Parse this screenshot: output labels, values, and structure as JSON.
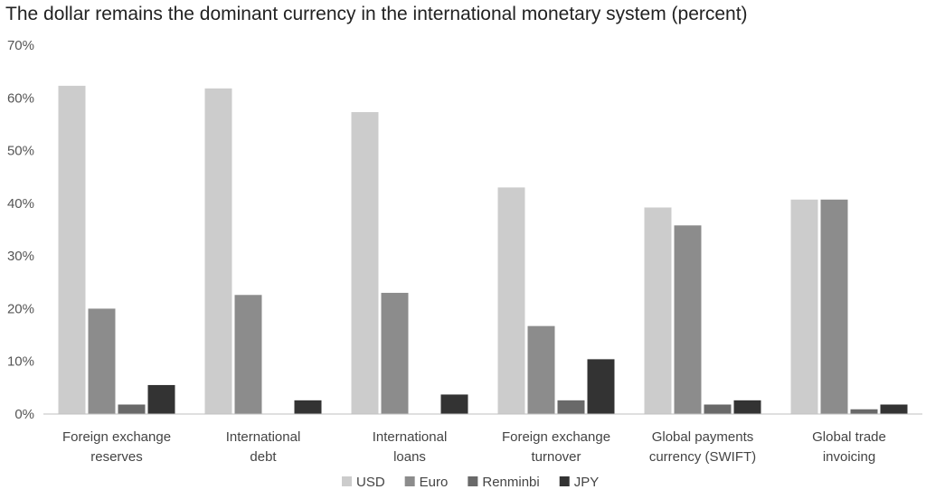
{
  "chart_data": {
    "type": "bar",
    "title": "The dollar remains the dominant currency in the international monetary system (percent)",
    "categories": [
      [
        "Foreign exchange",
        "reserves"
      ],
      [
        "International",
        "debt"
      ],
      [
        "International",
        "loans"
      ],
      [
        "Foreign exchange",
        "turnover"
      ],
      [
        "Global payments",
        "currency (SWIFT)"
      ],
      [
        "Global trade",
        "invoicing"
      ]
    ],
    "series": [
      {
        "name": "USD",
        "color": "#cccccc",
        "values": [
          62.3,
          61.8,
          57.3,
          43.0,
          39.2,
          40.7
        ]
      },
      {
        "name": "Euro",
        "color": "#8c8c8c",
        "values": [
          20.0,
          22.6,
          23.0,
          16.7,
          35.8,
          40.7
        ]
      },
      {
        "name": "Renminbi",
        "color": "#696969",
        "values": [
          1.8,
          0,
          0,
          2.6,
          1.8,
          0.9
        ]
      },
      {
        "name": "JPY",
        "color": "#333333",
        "values": [
          5.5,
          2.6,
          3.7,
          10.4,
          2.6,
          1.8
        ]
      }
    ],
    "ylim": [
      0,
      70
    ],
    "yticks": [
      0,
      10,
      20,
      30,
      40,
      50,
      60,
      70
    ],
    "ytick_labels": [
      "0%",
      "10%",
      "20%",
      "30%",
      "40%",
      "50%",
      "60%",
      "70%"
    ],
    "xlabel": "",
    "ylabel": "",
    "legend_position": "bottom-center",
    "grid": false
  }
}
